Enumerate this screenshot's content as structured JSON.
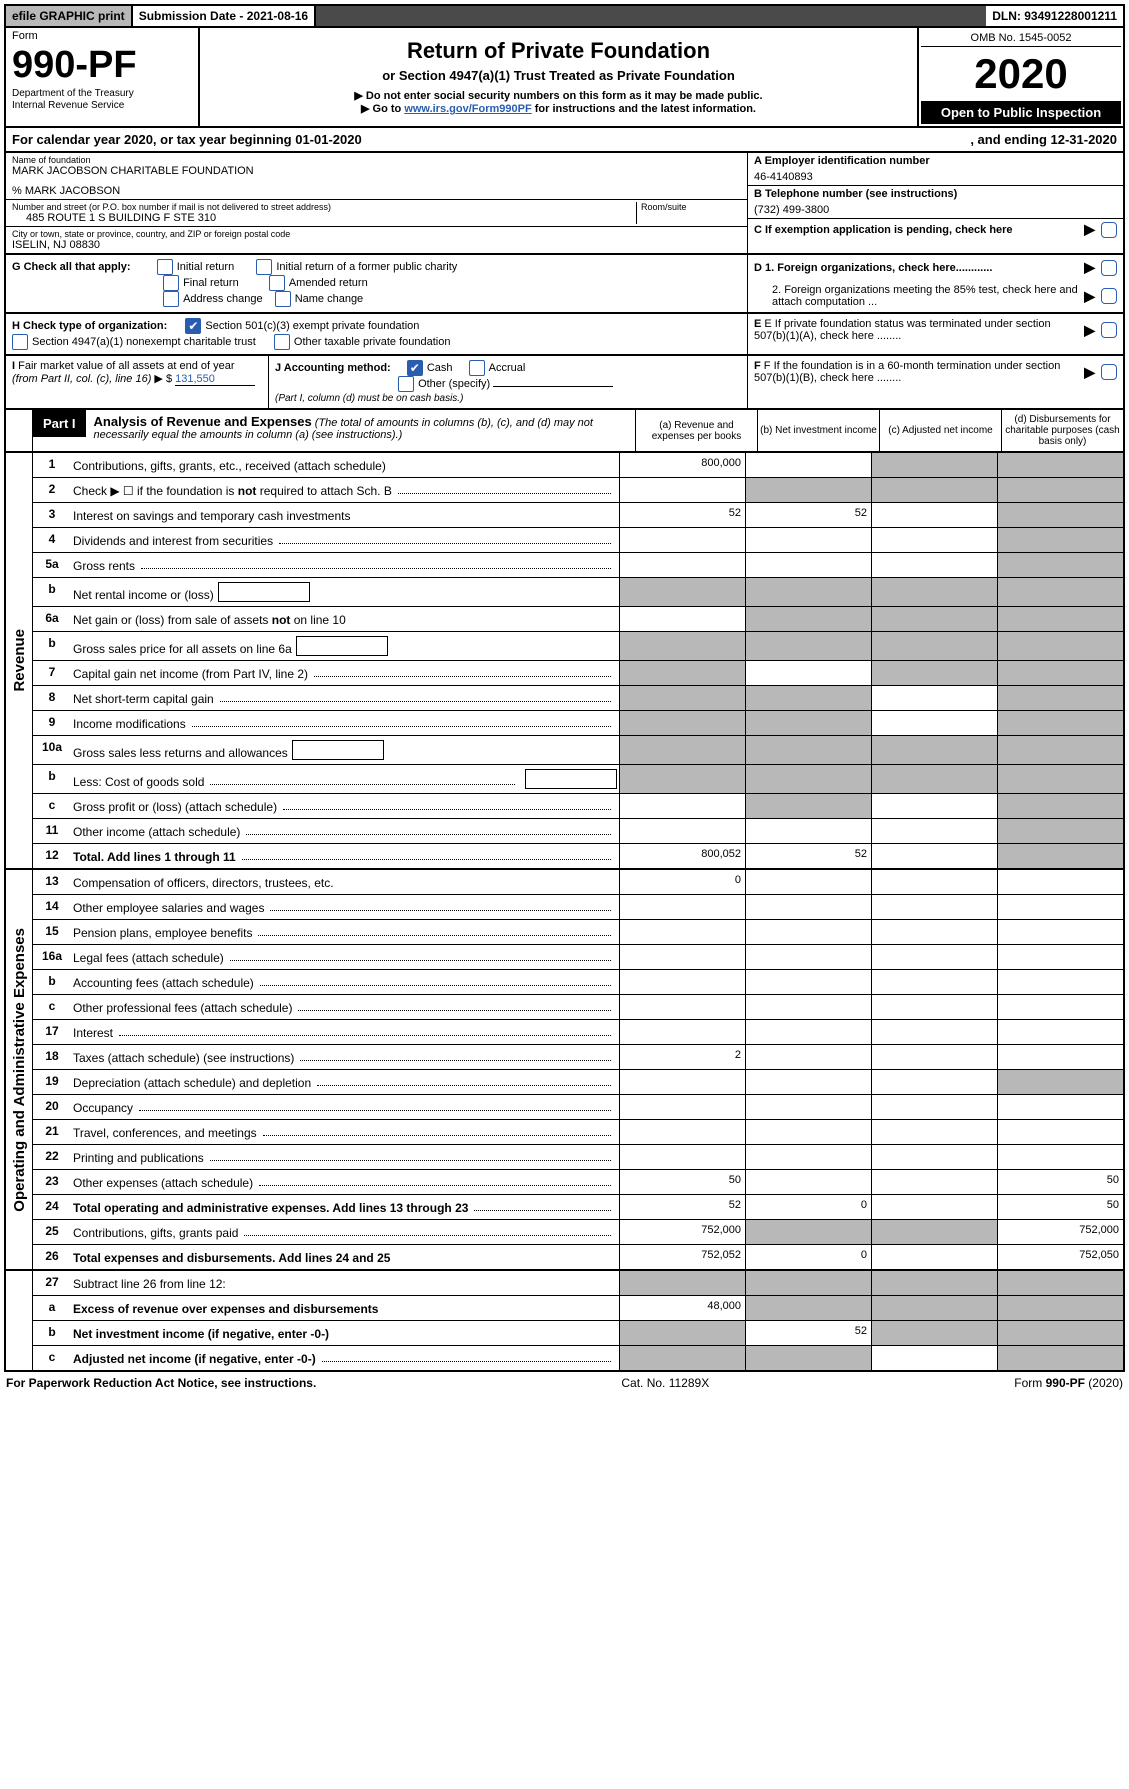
{
  "topbar": {
    "efile": "efile GRAPHIC print",
    "subdate_label": "Submission Date - ",
    "subdate": "2021-08-16",
    "dln_label": "DLN: ",
    "dln": "93491228001211"
  },
  "header": {
    "form_label": "Form",
    "form_num": "990-PF",
    "dept": "Department of the Treasury\nInternal Revenue Service",
    "title": "Return of Private Foundation",
    "subtitle": "or Section 4947(a)(1) Trust Treated as Private Foundation",
    "arrow1": "▶ Do not enter social security numbers on this form as it may be made public.",
    "arrow2_prefix": "▶ Go to ",
    "arrow2_link": "www.irs.gov/Form990PF",
    "arrow2_suffix": " for instructions and the latest information.",
    "omb": "OMB No. 1545-0052",
    "year": "2020",
    "open": "Open to Public Inspection"
  },
  "calyear": {
    "left": "For calendar year 2020, or tax year beginning 01-01-2020",
    "right": ", and ending 12-31-2020"
  },
  "info": {
    "name_label": "Name of foundation",
    "name": "MARK JACOBSON CHARITABLE FOUNDATION",
    "care_of": "% MARK JACOBSON",
    "addr_label": "Number and street (or P.O. box number if mail is not delivered to street address)",
    "addr": "485 ROUTE 1 S BUILDING F STE 310",
    "room_label": "Room/suite",
    "city_label": "City or town, state or province, country, and ZIP or foreign postal code",
    "city": "ISELIN, NJ  08830",
    "a": "A Employer identification number",
    "a_val": "46-4140893",
    "b": "B Telephone number (see instructions)",
    "b_val": "(732) 499-3800",
    "c": "C If exemption application is pending, check here",
    "d1": "D 1. Foreign organizations, check here............",
    "d2": "2. Foreign organizations meeting the 85% test, check here and attach computation ...",
    "e": "E  If private foundation status was terminated under section 507(b)(1)(A), check here ........",
    "f": "F  If the foundation is in a 60-month termination under section 507(b)(1)(B), check here ........"
  },
  "g": {
    "label": "G Check all that apply:",
    "opts": [
      "Initial return",
      "Initial return of a former public charity",
      "Final return",
      "Amended return",
      "Address change",
      "Name change"
    ]
  },
  "h": {
    "label": "H Check type of organization:",
    "opt1": "Section 501(c)(3) exempt private foundation",
    "opt2": "Section 4947(a)(1) nonexempt charitable trust",
    "opt3": "Other taxable private foundation"
  },
  "i": {
    "label": "I Fair market value of all assets at end of year (from Part II, col. (c), line 16) ▶ $",
    "val": "131,550"
  },
  "j": {
    "label": "J Accounting method:",
    "cash": "Cash",
    "accrual": "Accrual",
    "other": "Other (specify)",
    "note": "(Part I, column (d) must be on cash basis.)"
  },
  "part1": {
    "tab": "Part I",
    "title": "Analysis of Revenue and Expenses",
    "note": "(The total of amounts in columns (b), (c), and (d) may not necessarily equal the amounts in column (a) (see instructions).)",
    "col_a": "(a)    Revenue and expenses per books",
    "col_b": "(b)   Net investment income",
    "col_c": "(c)    Adjusted net income",
    "col_d": "(d)   Disbursements for charitable purposes (cash basis only)"
  },
  "revenue": [
    {
      "n": "1",
      "t": "Contributions, gifts, grants, etc., received (attach schedule)",
      "a": "800,000",
      "b": "",
      "c": "g",
      "d": "g"
    },
    {
      "n": "2",
      "t": "Check ▶ ☐ if the foundation is not required to attach Sch. B",
      "dots": true,
      "a": "",
      "b": "g",
      "c": "g",
      "d": "g"
    },
    {
      "n": "3",
      "t": "Interest on savings and temporary cash investments",
      "a": "52",
      "b": "52",
      "c": "",
      "d": "g"
    },
    {
      "n": "4",
      "t": "Dividends and interest from securities",
      "dots": true,
      "a": "",
      "b": "",
      "c": "",
      "d": "g"
    },
    {
      "n": "5a",
      "t": "Gross rents",
      "dots": true,
      "a": "",
      "b": "",
      "c": "",
      "d": "g"
    },
    {
      "n": "b",
      "t": "Net rental income or (loss)",
      "box": true,
      "a": "g",
      "b": "g",
      "c": "g",
      "d": "g"
    },
    {
      "n": "6a",
      "t": "Net gain or (loss) from sale of assets not on line 10",
      "a": "",
      "b": "g",
      "c": "g",
      "d": "g"
    },
    {
      "n": "b",
      "t": "Gross sales price for all assets on line 6a",
      "box": true,
      "a": "g",
      "b": "g",
      "c": "g",
      "d": "g"
    },
    {
      "n": "7",
      "t": "Capital gain net income (from Part IV, line 2)",
      "dots": true,
      "a": "g",
      "b": "",
      "c": "g",
      "d": "g"
    },
    {
      "n": "8",
      "t": "Net short-term capital gain",
      "dots": true,
      "a": "g",
      "b": "g",
      "c": "",
      "d": "g"
    },
    {
      "n": "9",
      "t": "Income modifications",
      "dots": true,
      "a": "g",
      "b": "g",
      "c": "",
      "d": "g"
    },
    {
      "n": "10a",
      "t": "Gross sales less returns and allowances",
      "box": true,
      "a": "g",
      "b": "g",
      "c": "g",
      "d": "g"
    },
    {
      "n": "b",
      "t": "Less: Cost of goods sold",
      "dots": true,
      "box": true,
      "a": "g",
      "b": "g",
      "c": "g",
      "d": "g"
    },
    {
      "n": "c",
      "t": "Gross profit or (loss) (attach schedule)",
      "dots": true,
      "a": "",
      "b": "g",
      "c": "",
      "d": "g"
    },
    {
      "n": "11",
      "t": "Other income (attach schedule)",
      "dots": true,
      "a": "",
      "b": "",
      "c": "",
      "d": "g"
    },
    {
      "n": "12",
      "t": "Total. Add lines 1 through 11",
      "bold": true,
      "dots": true,
      "a": "800,052",
      "b": "52",
      "c": "",
      "d": "g"
    }
  ],
  "expenses": [
    {
      "n": "13",
      "t": "Compensation of officers, directors, trustees, etc.",
      "a": "0",
      "b": "",
      "c": "",
      "d": ""
    },
    {
      "n": "14",
      "t": "Other employee salaries and wages",
      "dots": true,
      "a": "",
      "b": "",
      "c": "",
      "d": ""
    },
    {
      "n": "15",
      "t": "Pension plans, employee benefits",
      "dots": true,
      "a": "",
      "b": "",
      "c": "",
      "d": ""
    },
    {
      "n": "16a",
      "t": "Legal fees (attach schedule)",
      "dots": true,
      "a": "",
      "b": "",
      "c": "",
      "d": ""
    },
    {
      "n": "b",
      "t": "Accounting fees (attach schedule)",
      "dots": true,
      "a": "",
      "b": "",
      "c": "",
      "d": ""
    },
    {
      "n": "c",
      "t": "Other professional fees (attach schedule)",
      "dots": true,
      "a": "",
      "b": "",
      "c": "",
      "d": ""
    },
    {
      "n": "17",
      "t": "Interest",
      "dots": true,
      "a": "",
      "b": "",
      "c": "",
      "d": ""
    },
    {
      "n": "18",
      "t": "Taxes (attach schedule) (see instructions)",
      "dots": true,
      "a": "2",
      "b": "",
      "c": "",
      "d": ""
    },
    {
      "n": "19",
      "t": "Depreciation (attach schedule) and depletion",
      "dots": true,
      "a": "",
      "b": "",
      "c": "",
      "d": "g"
    },
    {
      "n": "20",
      "t": "Occupancy",
      "dots": true,
      "a": "",
      "b": "",
      "c": "",
      "d": ""
    },
    {
      "n": "21",
      "t": "Travel, conferences, and meetings",
      "dots": true,
      "a": "",
      "b": "",
      "c": "",
      "d": ""
    },
    {
      "n": "22",
      "t": "Printing and publications",
      "dots": true,
      "a": "",
      "b": "",
      "c": "",
      "d": ""
    },
    {
      "n": "23",
      "t": "Other expenses (attach schedule)",
      "dots": true,
      "a": "50",
      "b": "",
      "c": "",
      "d": "50"
    },
    {
      "n": "24",
      "t": "Total operating and administrative expenses. Add lines 13 through 23",
      "bold": true,
      "dots": true,
      "a": "52",
      "b": "0",
      "c": "",
      "d": "50"
    },
    {
      "n": "25",
      "t": "Contributions, gifts, grants paid",
      "dots": true,
      "a": "752,000",
      "b": "g",
      "c": "g",
      "d": "752,000"
    },
    {
      "n": "26",
      "t": "Total expenses and disbursements. Add lines 24 and 25",
      "bold": true,
      "a": "752,052",
      "b": "0",
      "c": "",
      "d": "752,050"
    }
  ],
  "line27": [
    {
      "n": "27",
      "t": "Subtract line 26 from line 12:",
      "a": "g",
      "b": "g",
      "c": "g",
      "d": "g"
    },
    {
      "n": "a",
      "t": "Excess of revenue over expenses and disbursements",
      "bold": true,
      "a": "48,000",
      "b": "g",
      "c": "g",
      "d": "g"
    },
    {
      "n": "b",
      "t": "Net investment income (if negative, enter -0-)",
      "bold": true,
      "a": "g",
      "b": "52",
      "c": "g",
      "d": "g"
    },
    {
      "n": "c",
      "t": "Adjusted net income (if negative, enter -0-)",
      "bold": true,
      "dots": true,
      "a": "g",
      "b": "g",
      "c": "",
      "d": "g"
    }
  ],
  "footer": {
    "left": "For Paperwork Reduction Act Notice, see instructions.",
    "center": "Cat. No. 11289X",
    "right": "Form 990-PF (2020)"
  },
  "section_labels": {
    "revenue": "Revenue",
    "expenses": "Operating and Administrative Expenses"
  }
}
